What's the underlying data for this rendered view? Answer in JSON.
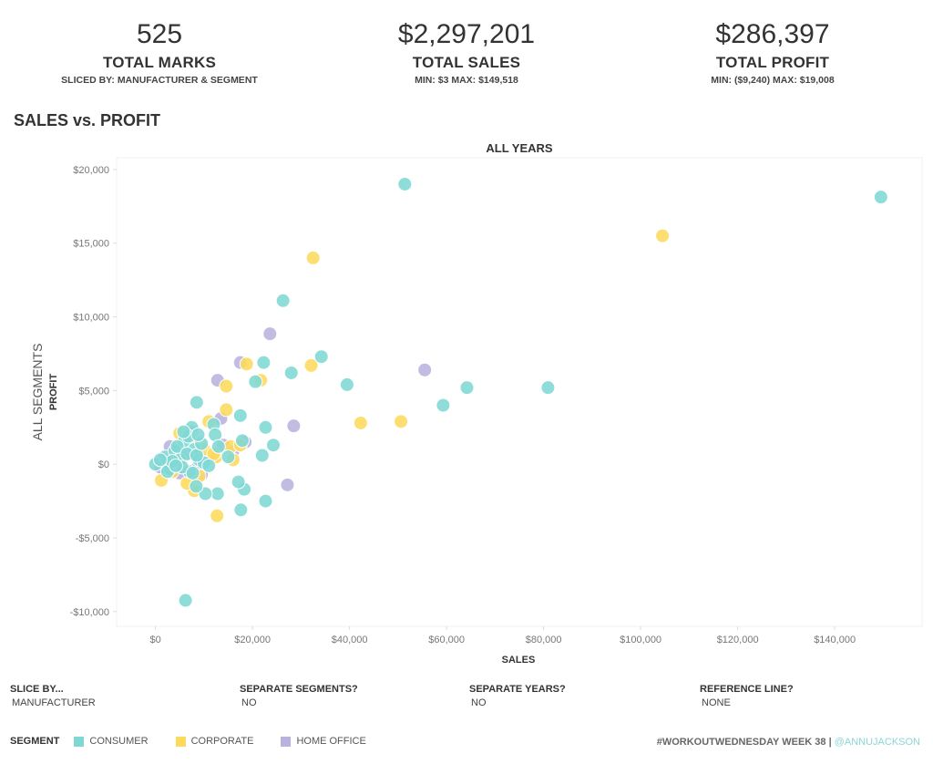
{
  "kpis": {
    "marks": {
      "value": "525",
      "label": "TOTAL MARKS",
      "sub": "SLICED BY: MANUFACTURER & SEGMENT"
    },
    "sales": {
      "value": "$2,297,201",
      "label": "TOTAL SALES",
      "sub": "MIN: $3 MAX: $149,518"
    },
    "profit": {
      "value": "$286,397",
      "label": "TOTAL PROFIT",
      "sub": "MIN: ($9,240) MAX: $19,008"
    }
  },
  "page_title": "SALES vs. PROFIT",
  "filters": [
    {
      "title": "SLICE BY...",
      "value": "MANUFACTURER"
    },
    {
      "title": "SEPARATE SEGMENTS?",
      "value": "NO"
    },
    {
      "title": "SEPARATE YEARS?",
      "value": "NO"
    },
    {
      "title": "REFERENCE LINE?",
      "value": "NONE"
    }
  ],
  "legend": {
    "title": "SEGMENT",
    "items": [
      {
        "label": "CONSUMER",
        "color": "#7fd8d4"
      },
      {
        "label": "CORPORATE",
        "color": "#fdd95c"
      },
      {
        "label": "HOME OFFICE",
        "color": "#b7b3de"
      }
    ]
  },
  "credit": {
    "text": "#WORKOUTWEDNESDAY WEEK 38 | ",
    "handle": "@ANNUJACKSON"
  },
  "chart_data": {
    "type": "scatter",
    "title": "SALES vs. PROFIT",
    "column_header": "ALL YEARS",
    "row_header": "ALL SEGMENTS",
    "xlabel": "SALES",
    "ylabel": "PROFIT",
    "xlim": [
      -8000,
      158000
    ],
    "ylim": [
      -11000,
      20800
    ],
    "xticks": [
      0,
      20000,
      40000,
      60000,
      80000,
      100000,
      120000,
      140000
    ],
    "xtick_labels": [
      "$0",
      "$20,000",
      "$40,000",
      "$60,000",
      "$80,000",
      "$100,000",
      "$120,000",
      "$140,000"
    ],
    "yticks": [
      20000,
      15000,
      10000,
      5000,
      0,
      -5000,
      -10000
    ],
    "ytick_labels": [
      "$20,000",
      "$15,000",
      "$10,000",
      "$5,000",
      "$0",
      "-$5,000",
      "-$10,000"
    ],
    "grid": false,
    "legend_position": "bottom-left",
    "series": [
      {
        "name": "HOME OFFICE",
        "color": "#b7b3de",
        "points": [
          [
            23600,
            8850
          ],
          [
            55500,
            6400
          ],
          [
            28500,
            2600
          ],
          [
            27200,
            -1400
          ],
          [
            12800,
            5700
          ],
          [
            17500,
            6900
          ],
          [
            13500,
            3100
          ],
          [
            18500,
            1500
          ],
          [
            9500,
            -700
          ],
          [
            4500,
            -400
          ],
          [
            1000,
            -200
          ],
          [
            3000,
            1200
          ],
          [
            7500,
            2200
          ],
          [
            14000,
            1300
          ],
          [
            6000,
            600
          ],
          [
            2000,
            300
          ],
          [
            8500,
            -300
          ],
          [
            11000,
            400
          ],
          [
            5000,
            -600
          ],
          [
            16000,
            900
          ]
        ]
      },
      {
        "name": "CORPORATE",
        "color": "#fdd95c",
        "points": [
          [
            104500,
            15500
          ],
          [
            32500,
            14000
          ],
          [
            32100,
            6700
          ],
          [
            42300,
            2800
          ],
          [
            50600,
            2900
          ],
          [
            12700,
            -3500
          ],
          [
            18800,
            6800
          ],
          [
            21700,
            5700
          ],
          [
            14600,
            5300
          ],
          [
            14600,
            3700
          ],
          [
            11000,
            2900
          ],
          [
            5000,
            2100
          ],
          [
            8000,
            -1800
          ],
          [
            1200,
            -1100
          ],
          [
            6500,
            -1300
          ],
          [
            12500,
            500
          ],
          [
            16000,
            300
          ],
          [
            10000,
            1000
          ],
          [
            3500,
            -500
          ],
          [
            7000,
            1800
          ],
          [
            15500,
            1200
          ],
          [
            9000,
            -800
          ],
          [
            4500,
            200
          ],
          [
            17500,
            1300
          ],
          [
            12000,
            700
          ]
        ]
      },
      {
        "name": "CONSUMER",
        "color": "#7fd8d4",
        "points": [
          [
            51400,
            19008
          ],
          [
            149518,
            18130
          ],
          [
            26300,
            11100
          ],
          [
            34200,
            7300
          ],
          [
            28000,
            6200
          ],
          [
            39500,
            5400
          ],
          [
            64200,
            5200
          ],
          [
            80900,
            5200
          ],
          [
            59300,
            4000
          ],
          [
            22300,
            6900
          ],
          [
            20600,
            5600
          ],
          [
            8500,
            4200
          ],
          [
            17500,
            3300
          ],
          [
            22700,
            2500
          ],
          [
            12000,
            2700
          ],
          [
            12300,
            2000
          ],
          [
            17900,
            1600
          ],
          [
            13000,
            1200
          ],
          [
            24300,
            1300
          ],
          [
            22000,
            600
          ],
          [
            15000,
            500
          ],
          [
            6200,
            -9240
          ],
          [
            17600,
            -3100
          ],
          [
            22700,
            -2500
          ],
          [
            12800,
            -2000
          ],
          [
            10300,
            -2000
          ],
          [
            18300,
            -1700
          ],
          [
            17100,
            -1200
          ],
          [
            8400,
            -1500
          ],
          [
            0,
            0
          ],
          [
            2000,
            500
          ],
          [
            3000,
            -300
          ],
          [
            4000,
            900
          ],
          [
            5000,
            300
          ],
          [
            6000,
            1600
          ],
          [
            7000,
            -500
          ],
          [
            8000,
            1000
          ],
          [
            9000,
            300
          ],
          [
            10000,
            100
          ],
          [
            2500,
            -500
          ],
          [
            4500,
            1200
          ],
          [
            5500,
            -200
          ],
          [
            6500,
            700
          ],
          [
            7500,
            2500
          ],
          [
            8500,
            600
          ],
          [
            9500,
            1400
          ],
          [
            3500,
            200
          ],
          [
            1000,
            300
          ],
          [
            6800,
            1900
          ],
          [
            5800,
            2200
          ],
          [
            11000,
            -100
          ],
          [
            7700,
            -600
          ],
          [
            4200,
            -100
          ],
          [
            8800,
            2000
          ]
        ]
      }
    ]
  }
}
